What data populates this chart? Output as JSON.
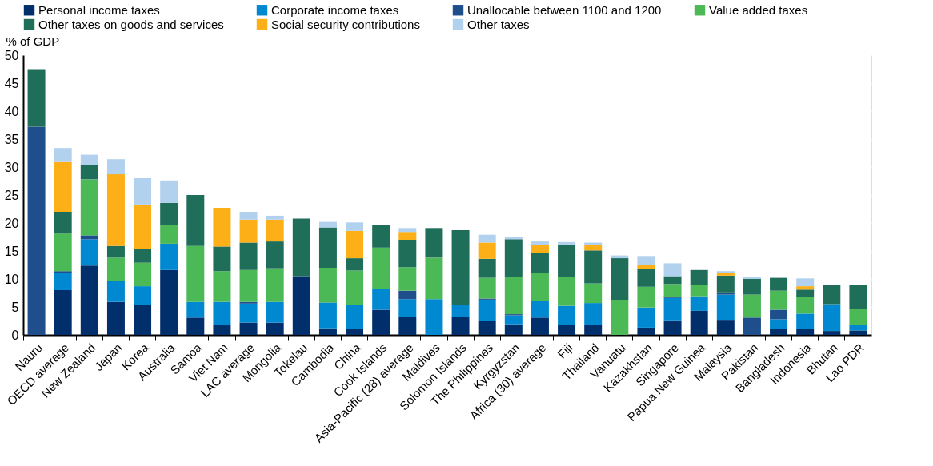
{
  "chart_data": {
    "type": "bar",
    "stacked": true,
    "ylabel": "% of GDP",
    "ylim": [
      0,
      50
    ],
    "yticks": [
      0,
      5,
      10,
      15,
      20,
      25,
      30,
      35,
      40,
      45,
      50
    ],
    "grid": true,
    "legend": "top",
    "categories": [
      "Nauru",
      "OECD average",
      "New Zealand",
      "Japan",
      "Korea",
      "Australia",
      "Samoa",
      "Viet Nam",
      "LAC average",
      "Mongolia",
      "Tokelau",
      "Cambodia",
      "China",
      "Cook Islands",
      "Asia-Pacific (28) average",
      "Maldives",
      "Solomon Islands",
      "The Philippines",
      "Kyrgyzstan",
      "Africa (30) average",
      "Fiji",
      "Thailand",
      "Vanuatu",
      "Kazakhstan",
      "Singapore",
      "Papua New Guinea",
      "Malaysia",
      "Pakistan",
      "Bangladesh",
      "Indonesia",
      "Bhutan",
      "Lao PDR"
    ],
    "series": [
      {
        "name": "Personal income taxes",
        "color": "#002f6c",
        "values": [
          0,
          8.0,
          12.4,
          5.9,
          5.3,
          11.6,
          3.1,
          1.8,
          2.2,
          2.2,
          10.5,
          1.2,
          1.1,
          4.5,
          3.2,
          0,
          3.2,
          2.5,
          1.9,
          3.1,
          1.8,
          1.8,
          0,
          1.3,
          2.6,
          4.3,
          2.7,
          0,
          1.1,
          1.1,
          0.7,
          0.8
        ]
      },
      {
        "name": "Corporate income taxes",
        "color": "#0089d0",
        "values": [
          0,
          3.1,
          4.7,
          3.8,
          3.4,
          4.7,
          2.8,
          4.1,
          3.4,
          3.7,
          0,
          4.6,
          4.3,
          3.7,
          3.2,
          6.4,
          2.2,
          3.8,
          1.6,
          2.9,
          3.4,
          3.9,
          0,
          3.6,
          4.0,
          2.6,
          4.5,
          0,
          1.7,
          2.7,
          4.8,
          1.0
        ]
      },
      {
        "name": "Unallocable between 1100 and 1200",
        "color": "#1f4e8c",
        "values": [
          37.2,
          0.3,
          0.7,
          0,
          0,
          0,
          0,
          0,
          0.3,
          0,
          0,
          0,
          0,
          0,
          1.5,
          0,
          0,
          0.2,
          0.2,
          0,
          0,
          0,
          0,
          0,
          0.2,
          0,
          0.4,
          3.1,
          1.7,
          0,
          0,
          0
        ]
      },
      {
        "name": "Value added taxes",
        "color": "#4cb957",
        "values": [
          0,
          6.7,
          10.0,
          4.1,
          4.2,
          3.3,
          10.0,
          5.5,
          5.7,
          6.0,
          0,
          6.2,
          6.1,
          7.4,
          4.2,
          7.4,
          0,
          3.7,
          6.6,
          5.0,
          5.1,
          3.5,
          6.3,
          3.7,
          2.3,
          2.0,
          0,
          4.1,
          3.4,
          3.0,
          0,
          2.8
        ]
      },
      {
        "name": "Other taxes on goods and services",
        "color": "#1f6e5a",
        "values": [
          10.3,
          3.9,
          2.5,
          2.1,
          2.5,
          4.0,
          9.1,
          4.4,
          4.9,
          4.8,
          10.3,
          7.2,
          2.2,
          4.1,
          4.9,
          5.3,
          13.3,
          3.4,
          6.8,
          3.6,
          5.8,
          5.9,
          7.4,
          3.2,
          1.4,
          2.7,
          3.0,
          2.8,
          2.3,
          1.3,
          3.4,
          4.3
        ]
      },
      {
        "name": "Social security contributions",
        "color": "#fdaf17",
        "values": [
          0,
          8.9,
          0,
          12.8,
          7.9,
          0,
          0,
          6.9,
          4.1,
          3.9,
          0,
          0,
          4.9,
          0,
          1.4,
          0,
          0,
          2.9,
          0,
          1.4,
          0,
          1.0,
          0,
          0.7,
          0,
          0,
          0.4,
          0,
          0,
          0.6,
          0,
          0
        ]
      },
      {
        "name": "Other taxes",
        "color": "#b1d1ef",
        "values": [
          0,
          2.5,
          1.9,
          2.7,
          4.7,
          4.0,
          0,
          0,
          1.4,
          0.7,
          0,
          1.0,
          1.5,
          0,
          0.7,
          0,
          0,
          1.4,
          0.4,
          0.7,
          0.5,
          0.4,
          0.5,
          1.6,
          2.3,
          0,
          0.4,
          0.3,
          0,
          1.4,
          0,
          0
        ]
      }
    ]
  }
}
